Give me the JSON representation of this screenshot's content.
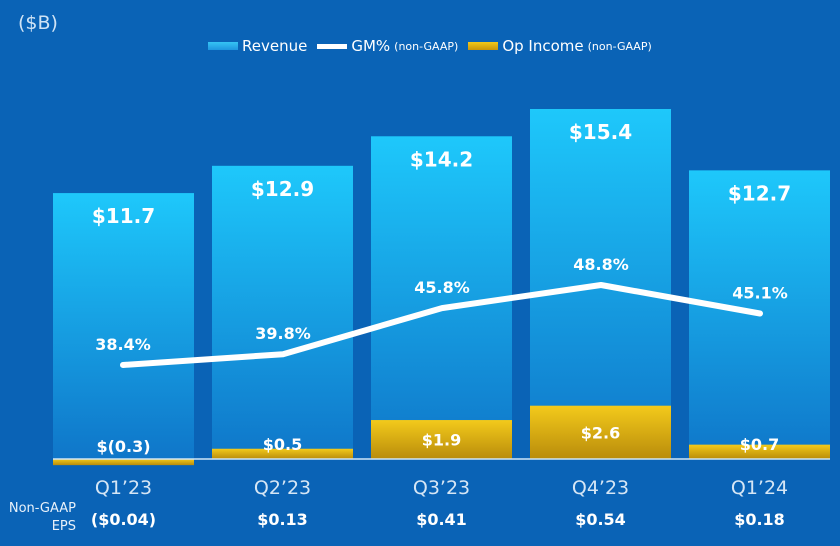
{
  "unit_label": "($B)",
  "legend": {
    "revenue": "Revenue",
    "gm": "GM%",
    "gm_note": "(non-GAAP)",
    "op": "Op Income",
    "op_note": "(non-GAAP)"
  },
  "eps_label_line1": "Non-GAAP",
  "eps_label_line2": "EPS",
  "colors": {
    "background": "#0a63b6",
    "revenue_top": "#1ec8fb",
    "revenue_bottom": "#0f76c9",
    "op_top": "#f3ca1b",
    "op_bottom": "#b98c0b",
    "gm_line": "#ffffff"
  },
  "chart_data": {
    "type": "bar",
    "title": "",
    "categories": [
      "Q1’23",
      "Q2’23",
      "Q3’23",
      "Q4’23",
      "Q1’24"
    ],
    "series": [
      {
        "name": "Revenue",
        "values": [
          11.7,
          12.9,
          14.2,
          15.4,
          12.7
        ],
        "labels": [
          "$11.7",
          "$12.9",
          "$14.2",
          "$15.4",
          "$12.7"
        ]
      },
      {
        "name": "Op Income (non-GAAP)",
        "values": [
          -0.3,
          0.5,
          1.9,
          2.6,
          0.7
        ],
        "labels": [
          "$(0.3)",
          "$0.5",
          "$1.9",
          "$2.6",
          "$0.7"
        ]
      },
      {
        "name": "GM% (non-GAAP)",
        "type": "line",
        "values": [
          38.4,
          39.8,
          45.8,
          48.8,
          45.1
        ],
        "labels": [
          "38.4%",
          "39.8%",
          "45.8%",
          "48.8%",
          "45.1%"
        ]
      }
    ],
    "eps": [
      "($0.04)",
      "$0.13",
      "$0.41",
      "$0.54",
      "$0.18"
    ],
    "ylabel": "($B)",
    "ylim": [
      0,
      15.4
    ]
  }
}
